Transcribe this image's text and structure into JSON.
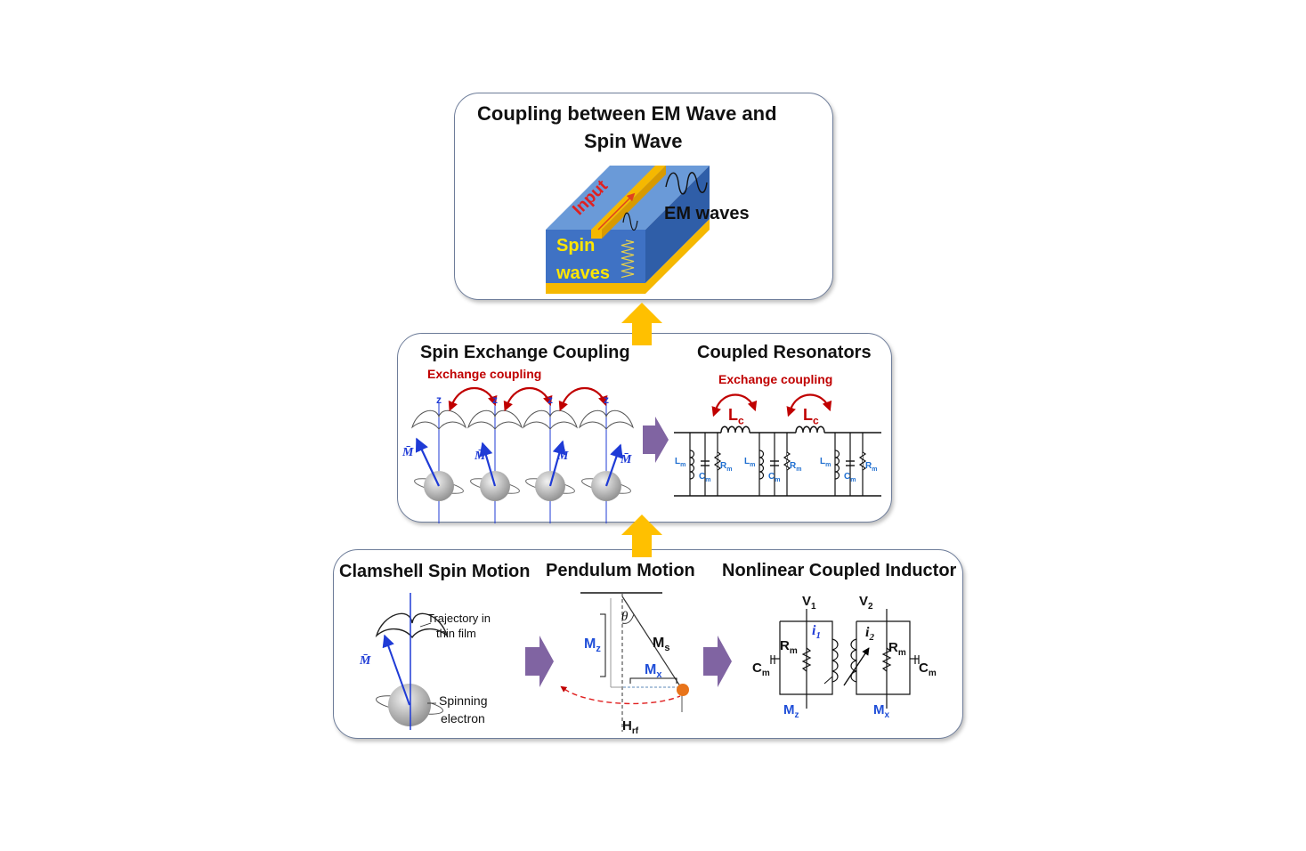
{
  "top_panel": {
    "title_line1": "Coupling between EM Wave and",
    "title_line2": "Spin Wave",
    "input_label": "Input",
    "em_label": "EM waves",
    "spin_label_1": "Spin",
    "spin_label_2": "waves"
  },
  "middle_panel": {
    "left_title": "Spin Exchange Coupling",
    "right_title": "Coupled Resonators",
    "exchange_left": "Exchange coupling",
    "exchange_right": "Exchange coupling",
    "z_axis": "z",
    "m_vector": "M̄",
    "lc": "L",
    "lc_sub": "c",
    "lm": "L",
    "lm_sub": "m",
    "cm": "C",
    "cm_sub": "m",
    "rm": "R",
    "rm_sub": "m"
  },
  "bottom_panel": {
    "clamshell_title": "Clamshell Spin Motion",
    "pendulum_title": "Pendulum Motion",
    "inductor_title": "Nonlinear Coupled Inductor",
    "trajectory_1": "Trajectory in",
    "trajectory_2": "thin film",
    "spinning_1": "Spinning",
    "spinning_2": "electron",
    "m_vector": "M̄",
    "theta": "θ",
    "mz": "M",
    "mz_sub": "z",
    "ms": "M",
    "ms_sub": "s",
    "mx": "M",
    "mx_sub": "x",
    "hrf": "H",
    "hrf_sub": "rf",
    "v1": "V",
    "v1_sub": "1",
    "v2": "V",
    "v2_sub": "2",
    "i1": "i",
    "i1_sub": "1",
    "i2": "i",
    "i2_sub": "2",
    "rm": "R",
    "rm_sub": "m",
    "cm": "C",
    "cm_sub": "m",
    "mz_out": "M",
    "mz_out_sub": "z",
    "mx_out": "M",
    "mx_out_sub": "x"
  },
  "colors": {
    "panel_border": "#6e7d9a",
    "arrow_up": "#ffc000",
    "arrow_right": "#8064a2",
    "label_blue": "#1f4ed8",
    "exchange_red": "#c00000",
    "slab_blue": "#3f72c4",
    "strip_gold": "#f5b800"
  }
}
